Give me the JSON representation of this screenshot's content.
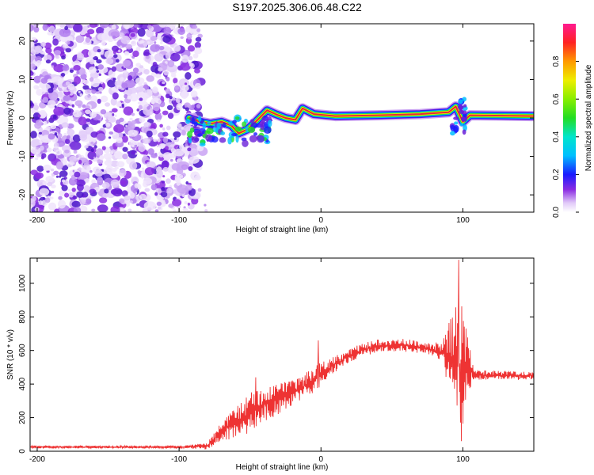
{
  "title": "S197.2025.306.06.48.C22",
  "colors": {
    "snr_line": "#ee3333",
    "ridge_core": "#e8243c",
    "noise": "#8a2be2"
  },
  "chart_data": [
    {
      "type": "heatmap",
      "title": "S197.2025.306.06.48.C22",
      "xlabel": "Height of straight line (km)",
      "ylabel": "Frequency (Hz)",
      "xlim": [
        -205,
        150
      ],
      "ylim": [
        -24.5,
        24.5
      ],
      "xticks": [
        -200,
        -100,
        0,
        100
      ],
      "yticks": [
        -20,
        -10,
        0,
        10,
        20
      ],
      "colorbar": {
        "label": "Normalized spectral amplitude",
        "range": [
          0,
          1
        ],
        "ticks": [
          "0.0",
          "0.2",
          "0.4",
          "0.6",
          "0.8"
        ],
        "colormap": "rainbow"
      },
      "noise_region_x": [
        -205,
        -85
      ],
      "ridge": [
        {
          "x": -93,
          "f": 0
        },
        {
          "x": -85,
          "f": -1
        },
        {
          "x": -78,
          "f": -1.5
        },
        {
          "x": -70,
          "f": -1
        },
        {
          "x": -63,
          "f": -2
        },
        {
          "x": -58,
          "f": -4
        },
        {
          "x": -52,
          "f": -3
        },
        {
          "x": -46,
          "f": -1
        },
        {
          "x": -38,
          "f": 2
        },
        {
          "x": -32,
          "f": 1
        },
        {
          "x": -25,
          "f": 0
        },
        {
          "x": -18,
          "f": -0.5
        },
        {
          "x": -13,
          "f": 2.5
        },
        {
          "x": -5,
          "f": 1
        },
        {
          "x": 10,
          "f": 0.5
        },
        {
          "x": 40,
          "f": 0.7
        },
        {
          "x": 70,
          "f": 1
        },
        {
          "x": 90,
          "f": 1.5
        },
        {
          "x": 95,
          "f": 3
        },
        {
          "x": 100,
          "f": -1
        },
        {
          "x": 105,
          "f": 0.7
        },
        {
          "x": 150,
          "f": 0.5
        }
      ]
    },
    {
      "type": "line",
      "xlabel": "Height of straight line (km)",
      "ylabel": "SNR (10 * v/v)",
      "xlim": [
        -205,
        150
      ],
      "ylim": [
        0,
        1150
      ],
      "xticks": [
        -200,
        -100,
        0,
        100
      ],
      "yticks": [
        0,
        200,
        400,
        600,
        800,
        1000
      ],
      "series": [
        {
          "name": "SNR",
          "envelope": [
            {
              "x": -205,
              "y": 25,
              "amp": 8
            },
            {
              "x": -100,
              "y": 25,
              "amp": 8
            },
            {
              "x": -80,
              "y": 30,
              "amp": 20
            },
            {
              "x": -70,
              "y": 120,
              "amp": 60
            },
            {
              "x": -55,
              "y": 200,
              "amp": 110
            },
            {
              "x": -45,
              "y": 260,
              "amp": 120
            },
            {
              "x": -30,
              "y": 310,
              "amp": 90
            },
            {
              "x": -15,
              "y": 370,
              "amp": 70
            },
            {
              "x": -5,
              "y": 430,
              "amp": 80
            },
            {
              "x": 10,
              "y": 520,
              "amp": 50
            },
            {
              "x": 25,
              "y": 590,
              "amp": 40
            },
            {
              "x": 40,
              "y": 630,
              "amp": 40
            },
            {
              "x": 60,
              "y": 630,
              "amp": 40
            },
            {
              "x": 75,
              "y": 610,
              "amp": 35
            },
            {
              "x": 85,
              "y": 590,
              "amp": 60
            },
            {
              "x": 92,
              "y": 560,
              "amp": 250
            },
            {
              "x": 98,
              "y": 500,
              "amp": 450
            },
            {
              "x": 103,
              "y": 500,
              "amp": 200
            },
            {
              "x": 108,
              "y": 455,
              "amp": 30
            },
            {
              "x": 150,
              "y": 450,
              "amp": 25
            }
          ],
          "spikes": [
            {
              "x": -46,
              "y": 440
            },
            {
              "x": -2,
              "y": 660
            },
            {
              "x": 97,
              "y": 1140
            },
            {
              "x": 99,
              "y": 60
            }
          ]
        }
      ]
    }
  ]
}
